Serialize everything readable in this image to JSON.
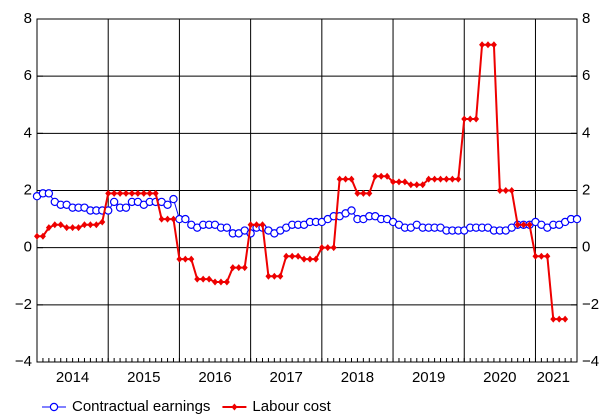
{
  "chart_data": {
    "type": "line",
    "categories": [
      null,
      null,
      null,
      null,
      null,
      null,
      "2014",
      null,
      null,
      null,
      null,
      null,
      null,
      null,
      null,
      null,
      null,
      null,
      "2015",
      null,
      null,
      null,
      null,
      null,
      null,
      null,
      null,
      null,
      null,
      null,
      "2016",
      null,
      null,
      null,
      null,
      null,
      null,
      null,
      null,
      null,
      null,
      null,
      "2017",
      null,
      null,
      null,
      null,
      null,
      null,
      null,
      null,
      null,
      null,
      null,
      "2018",
      null,
      null,
      null,
      null,
      null,
      null,
      null,
      null,
      null,
      null,
      null,
      "2019",
      null,
      null,
      null,
      null,
      null,
      null,
      null,
      null,
      null,
      null,
      null,
      "2020",
      null,
      null,
      null,
      null,
      null,
      null,
      null,
      null,
      "2021",
      null,
      null,
      null,
      null
    ],
    "series": [
      {
        "name": "Contractual earnings",
        "color": "#0000ff",
        "marker": "circle",
        "values": [
          1.8,
          1.9,
          1.9,
          1.6,
          1.5,
          1.5,
          1.4,
          1.4,
          1.4,
          1.3,
          1.3,
          1.3,
          1.3,
          1.6,
          1.4,
          1.4,
          1.6,
          1.6,
          1.5,
          1.6,
          1.6,
          1.6,
          1.5,
          1.7,
          1.0,
          1.0,
          0.8,
          0.7,
          0.8,
          0.8,
          0.8,
          0.7,
          0.7,
          0.5,
          0.5,
          0.6,
          0.5,
          0.7,
          0.7,
          0.6,
          0.5,
          0.6,
          0.7,
          0.8,
          0.8,
          0.8,
          0.9,
          0.9,
          0.9,
          1.0,
          1.1,
          1.1,
          1.2,
          1.3,
          1.0,
          1.0,
          1.1,
          1.1,
          1.0,
          1.0,
          0.9,
          0.8,
          0.7,
          0.7,
          0.8,
          0.7,
          0.7,
          0.7,
          0.7,
          0.6,
          0.6,
          0.6,
          0.6,
          0.7,
          0.7,
          0.7,
          0.7,
          0.6,
          0.6,
          0.6,
          0.7,
          0.8,
          0.8,
          0.8,
          0.9,
          0.8,
          0.7,
          0.8,
          0.8,
          0.9,
          1.0,
          1.0
        ]
      },
      {
        "name": "Labour cost",
        "color": "#ee0000",
        "marker": "diamond",
        "values": [
          0.4,
          0.4,
          0.7,
          0.8,
          0.8,
          0.7,
          0.7,
          0.7,
          0.8,
          0.8,
          0.8,
          0.9,
          1.9,
          1.9,
          1.9,
          1.9,
          1.9,
          1.9,
          1.9,
          1.9,
          1.9,
          1.0,
          1.0,
          1.0,
          -0.4,
          -0.4,
          -0.4,
          -1.1,
          -1.1,
          -1.1,
          -1.2,
          -1.2,
          -1.2,
          -0.7,
          -0.7,
          -0.7,
          0.8,
          0.8,
          0.8,
          -1.0,
          -1.0,
          -1.0,
          -0.3,
          -0.3,
          -0.3,
          -0.4,
          -0.4,
          -0.4,
          0.0,
          0.0,
          0.0,
          2.4,
          2.4,
          2.4,
          1.9,
          1.9,
          1.9,
          2.5,
          2.5,
          2.5,
          2.3,
          2.3,
          2.3,
          2.2,
          2.2,
          2.2,
          2.4,
          2.4,
          2.4,
          2.4,
          2.4,
          2.4,
          4.5,
          4.5,
          4.5,
          7.1,
          7.1,
          7.1,
          2.0,
          2.0,
          2.0,
          0.8,
          0.8,
          0.8,
          -0.3,
          -0.3,
          -0.3,
          -2.5,
          -2.5,
          -2.5,
          null,
          null
        ]
      }
    ],
    "ylim": [
      -4,
      8
    ],
    "yticks": [
      {
        "value": -4,
        "label": "−4"
      },
      {
        "value": -2,
        "label": "−2"
      },
      0,
      2,
      4,
      6,
      8
    ],
    "y2lim": [
      -4,
      8
    ],
    "y2ticks": [
      {
        "value": -4,
        "label": "−4"
      },
      {
        "value": -2,
        "label": "−2"
      },
      0,
      2,
      4,
      6,
      8
    ],
    "grid": true,
    "legend": "bottom"
  }
}
